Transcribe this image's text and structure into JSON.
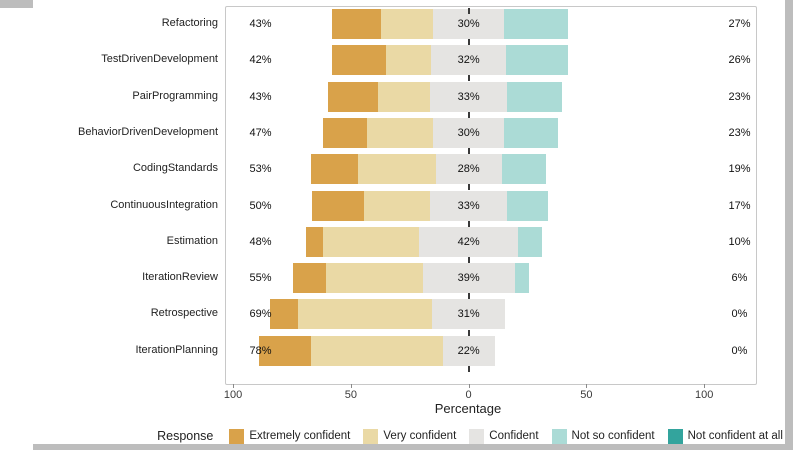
{
  "window": {
    "background": "#ffffff",
    "shadow_color": "#bdbdbd",
    "panel_border": "#c8c8c8"
  },
  "chart_data": {
    "type": "diverging_stacked_bar",
    "xlabel": "Percentage",
    "legend_title": "Response",
    "xlim": [
      -103,
      122
    ],
    "x_ticks": [
      {
        "value": -100,
        "label": "100"
      },
      {
        "value": -50,
        "label": "50"
      },
      {
        "value": 0,
        "label": "0"
      },
      {
        "value": 50,
        "label": "50"
      },
      {
        "value": 100,
        "label": "100"
      }
    ],
    "legend_position": "bottom",
    "series": [
      {
        "name": "Extremely confident",
        "color": "#d9a24a"
      },
      {
        "name": "Very confident",
        "color": "#ead9a5"
      },
      {
        "name": "Confident",
        "color": "#e5e4e2"
      },
      {
        "name": "Not so confident",
        "color": "#abdbd6"
      },
      {
        "name": "Not confident at all",
        "color": "#33a49d"
      }
    ],
    "rows": [
      {
        "category": "Refactoring",
        "left_label": "43%",
        "mid_label": "30%",
        "right_label": "27%",
        "values": [
          21,
          22,
          30,
          27,
          0
        ]
      },
      {
        "category": "TestDrivenDevelopment",
        "left_label": "42%",
        "mid_label": "32%",
        "right_label": "26%",
        "values": [
          23,
          19,
          32,
          26,
          0
        ]
      },
      {
        "category": "PairProgramming",
        "left_label": "43%",
        "mid_label": "33%",
        "right_label": "23%",
        "values": [
          21,
          22,
          33,
          23,
          0
        ]
      },
      {
        "category": "BehaviorDrivenDevelopment",
        "left_label": "47%",
        "mid_label": "30%",
        "right_label": "23%",
        "values": [
          19,
          28,
          30,
          23,
          0
        ]
      },
      {
        "category": "CodingStandards",
        "left_label": "53%",
        "mid_label": "28%",
        "right_label": "19%",
        "values": [
          20,
          33,
          28,
          19,
          0
        ]
      },
      {
        "category": "ContinuousIntegration",
        "left_label": "50%",
        "mid_label": "33%",
        "right_label": "17%",
        "values": [
          22,
          28,
          33,
          17,
          0
        ]
      },
      {
        "category": "Estimation",
        "left_label": "48%",
        "mid_label": "42%",
        "right_label": "10%",
        "values": [
          7,
          41,
          42,
          10,
          0
        ]
      },
      {
        "category": "IterationReview",
        "left_label": "55%",
        "mid_label": "39%",
        "right_label": "6%",
        "values": [
          14,
          41,
          39,
          6,
          0
        ]
      },
      {
        "category": "Retrospective",
        "left_label": "69%",
        "mid_label": "31%",
        "right_label": "0%",
        "values": [
          12,
          57,
          31,
          0,
          0
        ]
      },
      {
        "category": "IterationPlanning",
        "left_label": "78%",
        "mid_label": "22%",
        "right_label": "0%",
        "values": [
          22,
          56,
          22,
          0,
          0
        ]
      }
    ]
  }
}
